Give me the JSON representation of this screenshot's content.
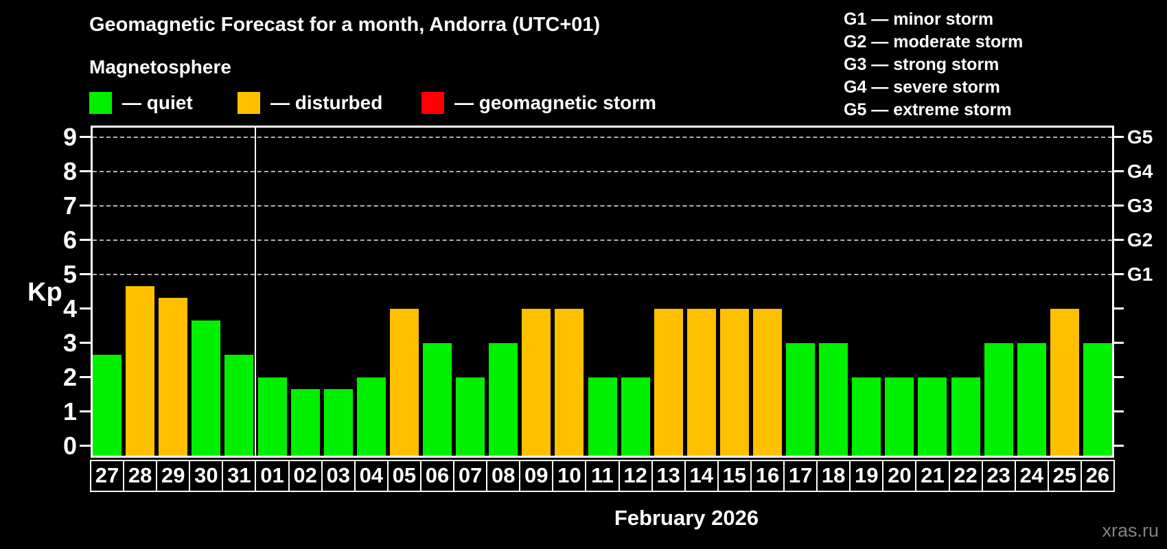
{
  "header": {
    "title": "Geomagnetic Forecast for a month, Andorra (UTC+01)",
    "subtitle": "Magnetosphere"
  },
  "legend": {
    "items": [
      {
        "status": "quiet",
        "label": "— quiet",
        "color": "#00f000"
      },
      {
        "status": "disturbed",
        "label": "— disturbed",
        "color": "#ffc000"
      },
      {
        "status": "storm",
        "label": "— geomagnetic storm",
        "color": "#ff0000"
      }
    ]
  },
  "storm_scale_legend": {
    "lines": [
      "G1 — minor storm",
      "G2 — moderate storm",
      "G3 — strong storm",
      "G4 — severe storm",
      "G5 — extreme storm"
    ]
  },
  "chart_data": {
    "type": "bar",
    "title": "Geomagnetic Forecast for a month, Andorra (UTC+01)",
    "subtitle": "Magnetosphere",
    "xlabel": "February 2026",
    "ylabel": "Kp",
    "ylim": [
      0,
      9
    ],
    "yticks": [
      0,
      1,
      2,
      3,
      4,
      5,
      6,
      7,
      8,
      9
    ],
    "gridlines_at": [
      5,
      6,
      7,
      8,
      9
    ],
    "grid": "dashed horizontal at storm levels only",
    "right_axis_labels": [
      {
        "kp": 5,
        "label": "G1"
      },
      {
        "kp": 6,
        "label": "G2"
      },
      {
        "kp": 7,
        "label": "G3"
      },
      {
        "kp": 8,
        "label": "G4"
      },
      {
        "kp": 9,
        "label": "G5"
      }
    ],
    "month_separator_after_index": 4,
    "categories": [
      "27",
      "28",
      "29",
      "30",
      "31",
      "01",
      "02",
      "03",
      "04",
      "05",
      "06",
      "07",
      "08",
      "09",
      "10",
      "11",
      "12",
      "13",
      "14",
      "15",
      "16",
      "17",
      "18",
      "19",
      "20",
      "21",
      "22",
      "23",
      "24",
      "25",
      "26"
    ],
    "values": [
      2.67,
      4.67,
      4.33,
      3.67,
      2.67,
      2.0,
      1.67,
      1.67,
      2.0,
      4.0,
      3.0,
      2.0,
      3.0,
      4.0,
      4.0,
      2.0,
      2.0,
      4.0,
      4.0,
      4.0,
      4.0,
      3.0,
      3.0,
      2.0,
      2.0,
      2.0,
      2.0,
      3.0,
      3.0,
      4.0,
      3.0
    ],
    "statuses": [
      "quiet",
      "disturbed",
      "disturbed",
      "quiet",
      "quiet",
      "quiet",
      "quiet",
      "quiet",
      "quiet",
      "disturbed",
      "quiet",
      "quiet",
      "quiet",
      "disturbed",
      "disturbed",
      "quiet",
      "quiet",
      "disturbed",
      "disturbed",
      "disturbed",
      "disturbed",
      "quiet",
      "quiet",
      "quiet",
      "quiet",
      "quiet",
      "quiet",
      "quiet",
      "quiet",
      "disturbed",
      "quiet"
    ],
    "series_colors": {
      "quiet": "#00f000",
      "disturbed": "#ffc000",
      "storm": "#ff0000"
    },
    "legend_position": "top-left",
    "background": "#000000"
  },
  "footer": {
    "month_label": "February 2026",
    "watermark": "xras.ru"
  }
}
